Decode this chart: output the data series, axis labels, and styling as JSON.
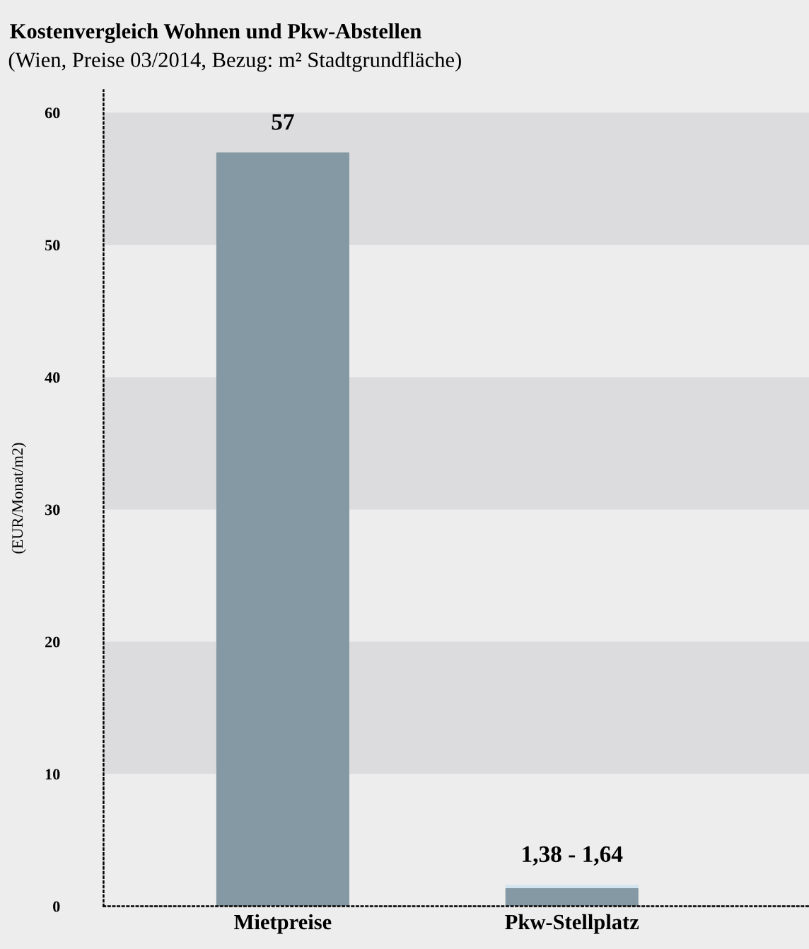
{
  "chart_data": {
    "type": "bar",
    "title": "Kostenvergleich Wohnen und Pkw-Abstellen",
    "subtitle": "(Wien, Preise 03/2014, Bezug: m² Stadtgrundfläche)",
    "ylabel": "(EUR/Monat/m2)",
    "categories": [
      "Mietpreise",
      "Pkw-Stellplatz"
    ],
    "stacked": true,
    "series": [
      {
        "color": "#8499a3",
        "values": [
          57,
          1.38
        ]
      },
      {
        "color": "#d4e6f1",
        "values": [
          null,
          0.26
        ]
      }
    ],
    "totals": [
      "57",
      "1,38 - 1,64"
    ],
    "ylim": [
      0,
      61.7
    ],
    "yticks": [
      0,
      10,
      20,
      30,
      40,
      50,
      60
    ],
    "bands": [
      {
        "axis": "y",
        "from": 10,
        "to": 20,
        "color": "#dcdcde"
      },
      {
        "axis": "y",
        "from": 30,
        "to": 40,
        "color": "#dcdcde"
      },
      {
        "axis": "y",
        "from": 50,
        "to": 60,
        "color": "#dcdcde"
      }
    ],
    "grid": false,
    "legend": false
  }
}
